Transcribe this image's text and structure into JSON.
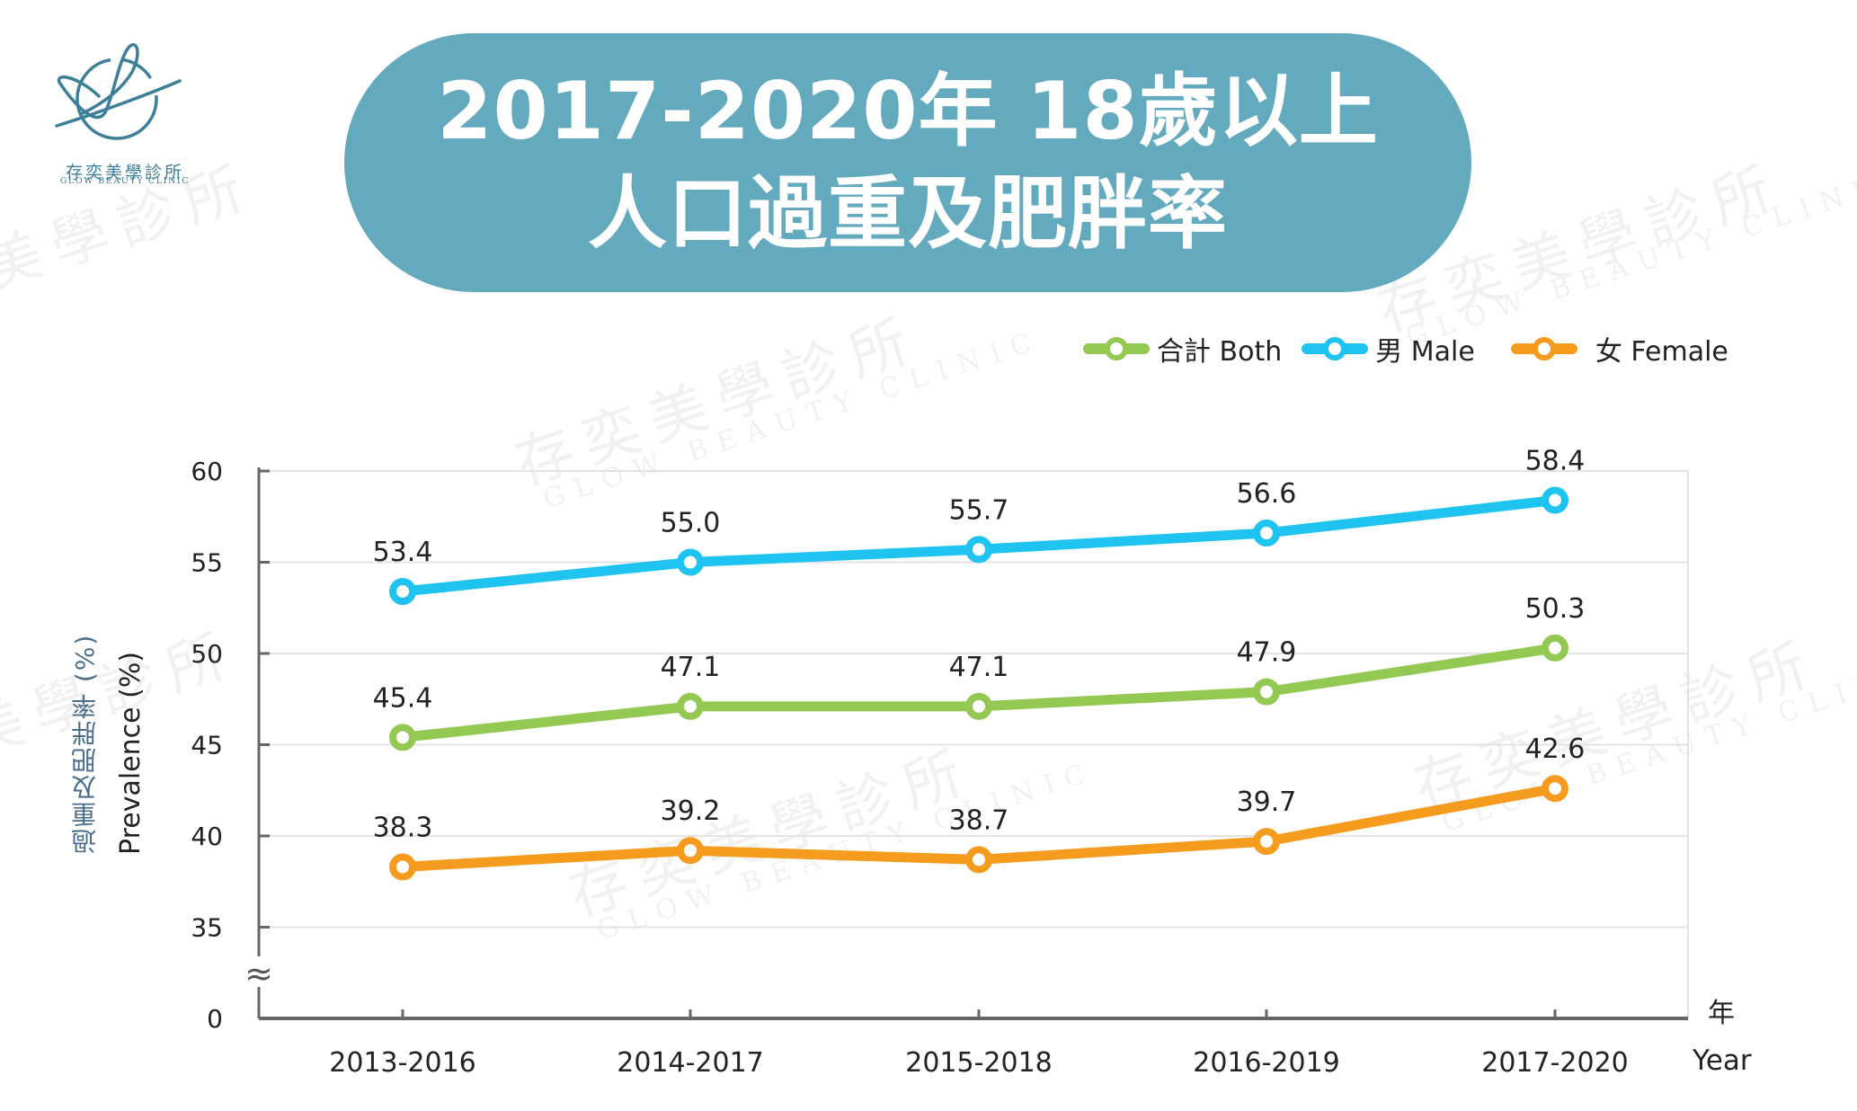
{
  "brand": {
    "name_cn": "存奕美學診所",
    "name_en": "GLOW BEAUTY CLINIC",
    "logo_color": "#3d7f99",
    "watermark_cn": "存奕美學診所",
    "watermark_en": "GLOW BEAUTY CLINIC"
  },
  "title": {
    "line1": "2017-2020年 18歲以上",
    "line2": "人口過重及肥胖率",
    "background": "#64aabf",
    "text_color": "#ffffff"
  },
  "legend": {
    "items": [
      {
        "key": "both",
        "label": "合計 Both",
        "color": "#93c853"
      },
      {
        "key": "male",
        "label": "男 Male",
        "color": "#1fc3f0"
      },
      {
        "key": "female",
        "label": "女 Female",
        "color": "#f59b1e"
      }
    ]
  },
  "axes": {
    "ylabel_cn": "過重及肥胖率 (%)",
    "ylabel_en": "Prevalence (%)",
    "xunit_cn": "年",
    "xunit_en": "Year",
    "axis_break_symbol": "≈"
  },
  "chart_data": {
    "type": "line",
    "title": "2017-2020年 18歲以上 人口過重及肥胖率",
    "xlabel": "年 Year",
    "ylabel": "過重及肥胖率 (%) Prevalence (%)",
    "categories": [
      "2013-2016",
      "2014-2017",
      "2015-2018",
      "2016-2019",
      "2017-2020"
    ],
    "series": [
      {
        "name": "男 Male",
        "key": "male",
        "color": "#1fc3f0",
        "values": [
          53.4,
          55.0,
          55.7,
          56.6,
          58.4
        ]
      },
      {
        "name": "合計 Both",
        "key": "both",
        "color": "#93c853",
        "values": [
          45.4,
          47.1,
          47.1,
          47.9,
          50.3
        ]
      },
      {
        "name": "女 Female",
        "key": "female",
        "color": "#f59b1e",
        "values": [
          38.3,
          39.2,
          38.7,
          39.7,
          42.6
        ]
      }
    ],
    "yticks": [
      0,
      35,
      40,
      45,
      50,
      55,
      60
    ],
    "ylim": [
      35,
      60
    ],
    "axis_break": "between 0 and 35",
    "grid": true,
    "data_labels": true,
    "legend_position": "top-right"
  }
}
